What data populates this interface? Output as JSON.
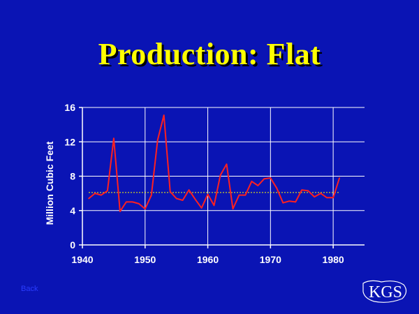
{
  "slide": {
    "title": "Production: Flat",
    "corner_link": "Back",
    "logo_text": "KGS"
  },
  "colors": {
    "background": "#0a14b4",
    "title": "#ffff00",
    "series": "#ff2020",
    "average_line": "#ffff00",
    "grid": "#ffffff"
  },
  "chart_data": {
    "type": "line",
    "title": "",
    "xlabel": "",
    "ylabel": "Million Cubic Feet",
    "xlim": [
      1940,
      1985
    ],
    "ylim": [
      0,
      16
    ],
    "xticks": [
      1940,
      1950,
      1960,
      1970,
      1980
    ],
    "yticks": [
      0,
      4,
      8,
      12,
      16
    ],
    "grid": true,
    "series": [
      {
        "x": [
          1941,
          1942,
          1943,
          1944,
          1945,
          1946,
          1947,
          1948,
          1949,
          1950,
          1951,
          1952,
          1953,
          1954,
          1955,
          1956,
          1957,
          1958,
          1959,
          1960,
          1961,
          1962,
          1963,
          1964,
          1965,
          1966,
          1967,
          1968,
          1969,
          1970,
          1971,
          1972,
          1973,
          1974,
          1975,
          1976,
          1977,
          1978,
          1979,
          1980,
          1981
        ],
        "values": [
          5.4,
          6.0,
          5.8,
          6.3,
          12.4,
          3.9,
          5.0,
          5.0,
          4.8,
          4.2,
          5.8,
          12.2,
          15.1,
          6.2,
          5.4,
          5.2,
          6.4,
          5.3,
          4.3,
          5.9,
          4.6,
          8.1,
          9.4,
          4.2,
          5.8,
          5.8,
          7.4,
          6.9,
          7.7,
          7.8,
          6.6,
          4.9,
          5.1,
          5.0,
          6.4,
          6.3,
          5.6,
          6.0,
          5.5,
          5.5,
          7.8
        ]
      }
    ],
    "average": 6.1
  }
}
